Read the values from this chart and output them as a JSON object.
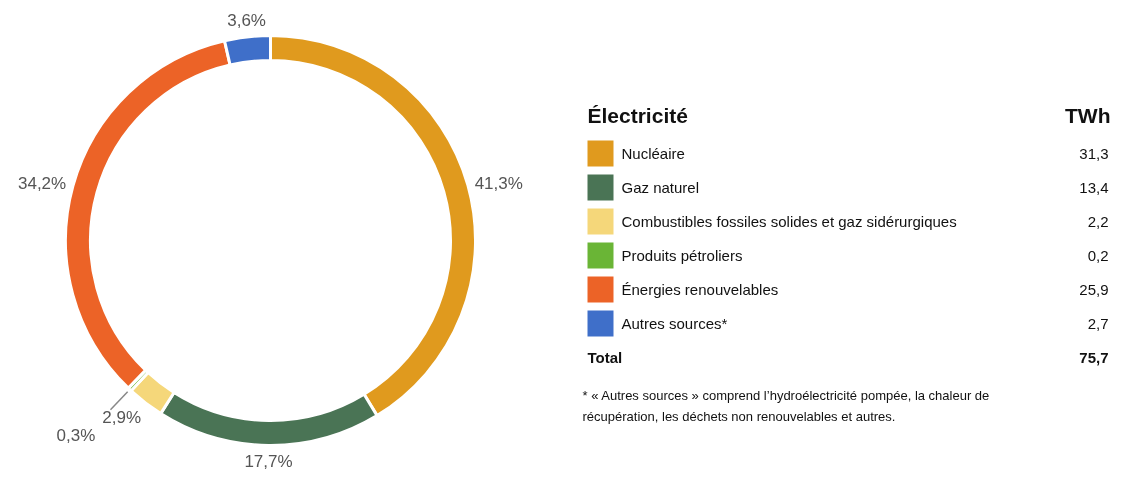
{
  "chart_data": {
    "type": "donut",
    "legend_title": "Électricité",
    "categories": [
      "Nucléaire",
      "Gaz naturel",
      "Combustibles fossiles solides et gaz sidérurgiques",
      "Produits pétroliers",
      "Énergies renouvelables",
      "Autres sources*"
    ],
    "values": [
      41.3,
      17.7,
      2.9,
      0.3,
      34.2,
      3.6
    ],
    "colors": [
      "#e09a1e",
      "#4a7455",
      "#f5d77a",
      "#6ab536",
      "#ec6327",
      "#3f6fc9"
    ],
    "value_labels": [
      "41,3%",
      "17,7%",
      "2,9%",
      "0,3%",
      "34,2%",
      "3,6%"
    ],
    "legend": "right",
    "annotations": [
      "TWh",
      "31,3",
      "13,4",
      "2,2",
      "0,2",
      "25,9",
      "2,7",
      "Total",
      "75,7",
      "* « Autres sources » comprend l’hydroélectricité pompée, la chaleur de récupération, les déchets non renouvelables et autres."
    ]
  }
}
